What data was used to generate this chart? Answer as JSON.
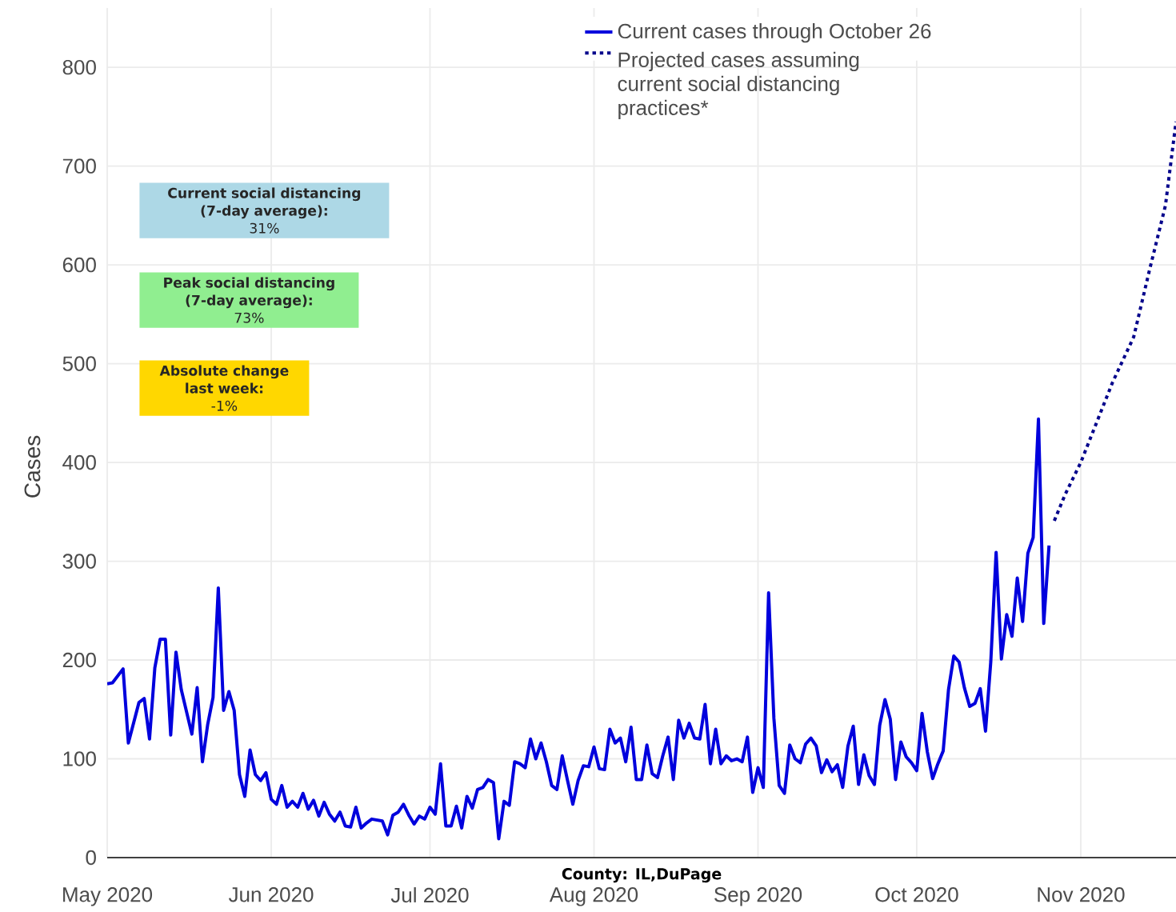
{
  "chart_data": {
    "type": "line",
    "xlabel": "County: IL,DuPage",
    "ylabel": "Cases",
    "annotations": [
      "Current social distancing (7-day average):",
      "31%",
      "Peak social distancing (7-day average):",
      "73%",
      "Absolute change last week:",
      "-1%"
    ],
    "xlim": [
      "2020-05-01",
      "2020-11-19"
    ],
    "ylim": [
      0,
      860
    ],
    "xticks": [
      {
        "value": "2020-05-01",
        "label": "May 2020"
      },
      {
        "value": "2020-06-01",
        "label": "Jun 2020"
      },
      {
        "value": "2020-07-01",
        "label": "Jul 2020"
      },
      {
        "value": "2020-08-01",
        "label": "Aug 2020"
      },
      {
        "value": "2020-09-01",
        "label": "Sep 2020"
      },
      {
        "value": "2020-10-01",
        "label": "Oct 2020"
      },
      {
        "value": "2020-11-01",
        "label": "Nov 2020"
      }
    ],
    "yticks": [
      0,
      100,
      200,
      300,
      400,
      500,
      600,
      700,
      800
    ],
    "grid": true,
    "legend": "top",
    "series": [
      {
        "name": "Current cases through October 26",
        "color": "#0000dd",
        "line_style": "solid",
        "x": [
          "2020-05-01",
          "2020-05-02",
          "2020-05-04",
          "2020-05-05",
          "2020-05-07",
          "2020-05-08",
          "2020-05-09",
          "2020-05-10",
          "2020-05-11",
          "2020-05-12",
          "2020-05-13",
          "2020-05-14",
          "2020-05-15",
          "2020-05-17",
          "2020-05-18",
          "2020-05-19",
          "2020-05-20",
          "2020-05-21",
          "2020-05-22",
          "2020-05-23",
          "2020-05-24",
          "2020-05-25",
          "2020-05-26",
          "2020-05-27",
          "2020-05-28",
          "2020-05-29",
          "2020-05-30",
          "2020-05-31",
          "2020-06-01",
          "2020-06-02",
          "2020-06-03",
          "2020-06-04",
          "2020-06-05",
          "2020-06-06",
          "2020-06-07",
          "2020-06-08",
          "2020-06-09",
          "2020-06-10",
          "2020-06-11",
          "2020-06-12",
          "2020-06-13",
          "2020-06-14",
          "2020-06-15",
          "2020-06-16",
          "2020-06-17",
          "2020-06-18",
          "2020-06-19",
          "2020-06-20",
          "2020-06-22",
          "2020-06-23",
          "2020-06-24",
          "2020-06-25",
          "2020-06-26",
          "2020-06-27",
          "2020-06-28",
          "2020-06-29",
          "2020-06-30",
          "2020-07-01",
          "2020-07-02",
          "2020-07-03",
          "2020-07-04",
          "2020-07-05",
          "2020-07-06",
          "2020-07-07",
          "2020-07-08",
          "2020-07-09",
          "2020-07-10",
          "2020-07-11",
          "2020-07-12",
          "2020-07-13",
          "2020-07-14",
          "2020-07-15",
          "2020-07-16",
          "2020-07-17",
          "2020-07-18",
          "2020-07-19",
          "2020-07-20",
          "2020-07-21",
          "2020-07-22",
          "2020-07-23",
          "2020-07-24",
          "2020-07-25",
          "2020-07-26",
          "2020-07-27",
          "2020-07-28",
          "2020-07-29",
          "2020-07-30",
          "2020-07-31",
          "2020-08-01",
          "2020-08-02",
          "2020-08-03",
          "2020-08-04",
          "2020-08-05",
          "2020-08-06",
          "2020-08-07",
          "2020-08-08",
          "2020-08-09",
          "2020-08-10",
          "2020-08-11",
          "2020-08-12",
          "2020-08-13",
          "2020-08-14",
          "2020-08-15",
          "2020-08-16",
          "2020-08-17",
          "2020-08-18",
          "2020-08-19",
          "2020-08-20",
          "2020-08-21",
          "2020-08-22",
          "2020-08-23",
          "2020-08-24",
          "2020-08-25",
          "2020-08-26",
          "2020-08-27",
          "2020-08-28",
          "2020-08-29",
          "2020-08-30",
          "2020-08-31",
          "2020-09-01",
          "2020-09-02",
          "2020-09-03",
          "2020-09-04",
          "2020-09-05",
          "2020-09-06",
          "2020-09-07",
          "2020-09-08",
          "2020-09-09",
          "2020-09-10",
          "2020-09-11",
          "2020-09-12",
          "2020-09-13",
          "2020-09-14",
          "2020-09-15",
          "2020-09-16",
          "2020-09-17",
          "2020-09-18",
          "2020-09-19",
          "2020-09-20",
          "2020-09-21",
          "2020-09-22",
          "2020-09-23",
          "2020-09-24",
          "2020-09-25",
          "2020-09-26",
          "2020-09-27",
          "2020-09-28",
          "2020-09-29",
          "2020-09-30",
          "2020-10-01",
          "2020-10-02",
          "2020-10-03",
          "2020-10-04",
          "2020-10-05",
          "2020-10-06",
          "2020-10-07",
          "2020-10-08",
          "2020-10-09",
          "2020-10-10",
          "2020-10-11",
          "2020-10-12",
          "2020-10-13",
          "2020-10-14",
          "2020-10-15",
          "2020-10-16",
          "2020-10-17",
          "2020-10-18",
          "2020-10-19",
          "2020-10-20",
          "2020-10-21",
          "2020-10-22",
          "2020-10-23",
          "2020-10-24",
          "2020-10-25",
          "2020-10-26"
        ],
        "values": [
          176,
          177,
          191,
          116,
          157,
          161,
          120,
          192,
          221,
          221,
          124,
          208,
          170,
          125,
          172,
          97,
          135,
          162,
          273,
          149,
          168,
          149,
          84,
          62,
          109,
          84,
          78,
          86,
          59,
          54,
          73,
          51,
          57,
          51,
          65,
          49,
          58,
          42,
          56,
          44,
          37,
          46,
          32,
          31,
          51,
          30,
          35,
          39,
          37,
          23,
          43,
          46,
          54,
          43,
          34,
          42,
          39,
          51,
          44,
          95,
          32,
          32,
          52,
          30,
          62,
          50,
          69,
          71,
          79,
          76,
          19,
          57,
          53,
          97,
          95,
          91,
          120,
          100,
          116,
          97,
          73,
          69,
          103,
          78,
          54,
          78,
          93,
          92,
          112,
          90,
          89,
          130,
          116,
          121,
          97,
          132,
          79,
          79,
          114,
          85,
          81,
          103,
          122,
          79,
          139,
          121,
          136,
          121,
          120,
          155,
          95,
          130,
          95,
          103,
          98,
          100,
          97,
          122,
          66,
          91,
          71,
          268,
          141,
          73,
          65,
          114,
          100,
          96,
          115,
          121,
          113,
          86,
          99,
          87,
          94,
          71,
          113,
          133,
          74,
          104,
          83,
          74,
          134,
          160,
          140,
          79,
          117,
          102,
          96,
          88,
          146,
          107,
          80,
          95,
          108,
          170,
          204,
          198,
          172,
          153,
          156,
          171,
          128,
          199,
          309,
          201,
          246,
          224,
          283,
          239,
          308,
          324,
          444,
          237,
          316
        ]
      },
      {
        "name": "Projected cases assuming current social distancing practices*",
        "color": "#00008b",
        "line_style": "dotted",
        "x": [
          "2020-10-27",
          "2020-10-29",
          "2020-11-01",
          "2020-11-07",
          "2020-11-11",
          "2020-11-14",
          "2020-11-17",
          "2020-11-19"
        ],
        "values": [
          341,
          367,
          400,
          481,
          527,
          595,
          660,
          745
        ]
      }
    ]
  }
}
